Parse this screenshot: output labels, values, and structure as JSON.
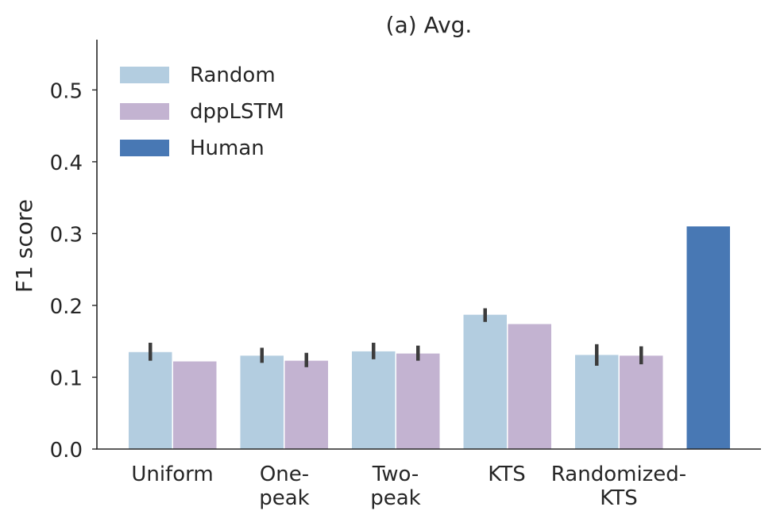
{
  "chart_data": {
    "type": "bar",
    "title": "(a) Avg.",
    "ylabel": "F1 score",
    "xlabel": "",
    "ylim": [
      0,
      0.57
    ],
    "yticks": [
      "0.0",
      "0.1",
      "0.2",
      "0.3",
      "0.4",
      "0.5"
    ],
    "ytick_values": [
      0.0,
      0.1,
      0.2,
      0.3,
      0.4,
      0.5
    ],
    "categories": [
      [
        "Uniform"
      ],
      [
        "One-",
        "peak"
      ],
      [
        "Two-",
        "peak"
      ],
      [
        "KTS"
      ],
      [
        "Randomized-",
        "KTS"
      ],
      []
    ],
    "legend": {
      "placement": "top-left"
    },
    "series": [
      {
        "name": "Random",
        "color": "#b3cde0",
        "values": [
          0.135,
          0.13,
          0.136,
          0.187,
          0.131,
          null
        ],
        "errors": [
          [
            0.123,
            0.148
          ],
          [
            0.12,
            0.141
          ],
          [
            0.125,
            0.148
          ],
          [
            0.177,
            0.196
          ],
          [
            0.116,
            0.146
          ],
          null
        ]
      },
      {
        "name": "dppLSTM",
        "color": "#c3b3d1",
        "values": [
          0.122,
          0.123,
          0.133,
          0.174,
          0.13,
          null
        ],
        "errors": [
          null,
          [
            0.114,
            0.134
          ],
          [
            0.123,
            0.144
          ],
          null,
          [
            0.118,
            0.143
          ],
          null
        ]
      },
      {
        "name": "Human",
        "color": "#4878b4",
        "values": [
          null,
          null,
          null,
          null,
          null,
          0.31
        ],
        "errors": [
          null,
          null,
          null,
          null,
          null,
          null
        ]
      }
    ]
  }
}
